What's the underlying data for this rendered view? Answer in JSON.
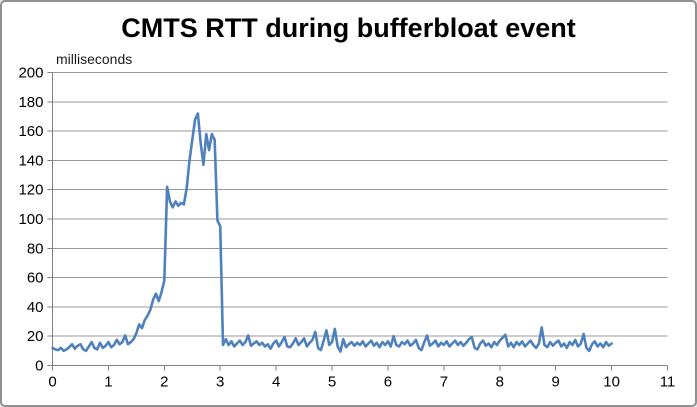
{
  "window": {
    "background": "#ffffff",
    "border_color": "#909090"
  },
  "chart_data": {
    "type": "line",
    "title": "CMTS RTT during bufferbloat event",
    "ylabel": "milliseconds",
    "xlabel": "",
    "xlim": [
      0,
      11
    ],
    "ylim": [
      0,
      200
    ],
    "x_tick_step": 1,
    "y_tick_step": 20,
    "grid": true,
    "legend": "none",
    "colors": {
      "line": "#4f81bd",
      "gridline": "#999999",
      "axis": "#808080",
      "tick_label": "#000000",
      "title": "#000000"
    },
    "series": [
      {
        "name": "CMTS RTT",
        "color": "#4f81bd",
        "x_start": 0,
        "x_step": 0.05,
        "values": [
          12,
          11,
          10.5,
          12,
          10,
          11,
          12.5,
          14.5,
          11.5,
          13.5,
          14.5,
          11,
          10,
          13,
          16,
          12,
          11,
          15.5,
          12,
          13.5,
          16,
          12.5,
          14,
          17.5,
          14.5,
          16,
          20.5,
          14.5,
          16,
          18,
          22,
          28,
          25.5,
          31,
          34,
          38,
          45,
          49,
          44,
          50,
          58,
          122,
          112,
          108,
          112,
          109,
          111,
          110,
          121,
          140,
          154,
          168,
          172,
          152,
          137,
          158,
          147,
          158,
          154,
          99,
          95,
          14,
          18,
          14,
          16.5,
          13,
          15,
          17,
          14,
          16,
          20.5,
          13.5,
          15,
          16.5,
          14,
          15.5,
          13,
          14.5,
          11.5,
          15,
          17,
          13,
          16,
          19.5,
          13,
          12.5,
          15,
          18.5,
          14,
          16,
          18.5,
          13,
          15.5,
          17.5,
          23,
          12,
          10.5,
          17,
          24,
          14,
          16,
          25,
          13,
          9.5,
          18,
          12.5,
          14.5,
          16,
          13.5,
          15.5,
          14,
          16.5,
          13,
          15,
          17,
          13.5,
          15.5,
          12.5,
          16,
          14,
          16.5,
          13,
          20,
          14,
          13,
          16,
          14.5,
          17,
          13.5,
          15,
          17.5,
          12,
          10.5,
          16,
          20.5,
          13.5,
          15,
          17,
          13,
          15.5,
          14,
          16.5,
          13,
          15,
          17,
          14,
          16,
          13.5,
          15.5,
          18,
          19.5,
          12,
          11,
          15,
          17,
          13.5,
          15,
          12.5,
          16,
          14,
          17,
          19,
          21,
          13,
          15.5,
          12.5,
          16,
          14,
          16.5,
          13,
          15,
          17,
          14,
          12,
          15,
          26,
          14,
          12.5,
          16,
          13.5,
          15.5,
          17,
          13,
          15,
          12,
          16,
          14,
          17.5,
          13,
          15,
          21.5,
          12,
          10,
          14.5,
          16.5,
          13,
          15,
          12.5,
          16,
          13.5,
          15
        ]
      }
    ]
  }
}
